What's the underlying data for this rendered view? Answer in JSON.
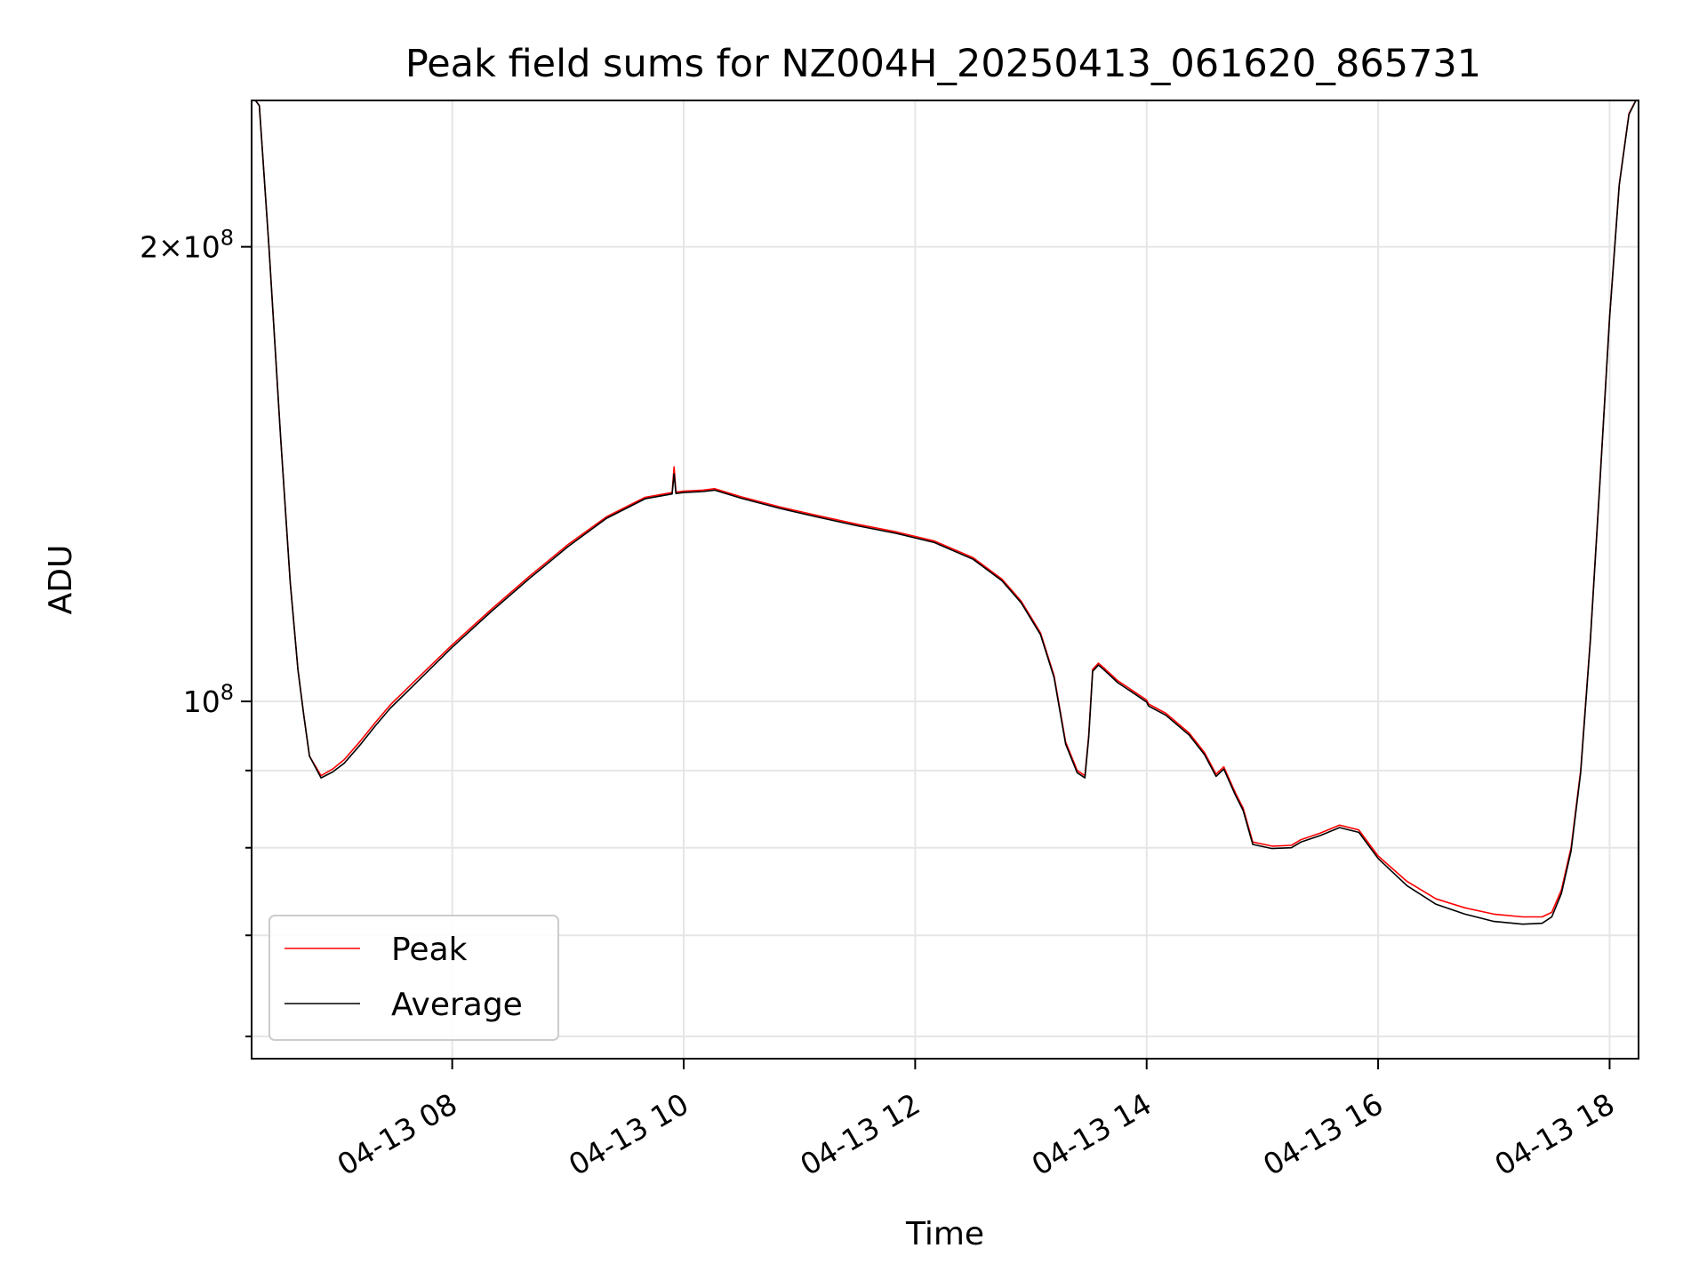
{
  "chart_data": {
    "type": "line",
    "title": "Peak field sums for NZ004H_20250413_061620_865731",
    "xlabel": "Time",
    "ylabel": "ADU",
    "yscale": "log",
    "ylim": [
      58000000,
      250000000
    ],
    "x_range": [
      "04-13 06:16",
      "04-13 18:15"
    ],
    "x_ticks": [
      "04-13 08",
      "04-13 10",
      "04-13 12",
      "04-13 14",
      "04-13 16",
      "04-13 18"
    ],
    "y_major_tick_labels": [
      "10^8",
      "2×10^8"
    ],
    "y_minor_tick_values": [
      60000000,
      70000000,
      80000000,
      90000000
    ],
    "grid": true,
    "legend_position": "lower-left",
    "series": [
      {
        "name": "Peak",
        "color": "#ff0000",
        "x": [
          "04-13 06:16",
          "04-13 06:20",
          "04-13 06:25",
          "04-13 06:31",
          "04-13 06:36",
          "04-13 06:40",
          "04-13 06:43",
          "04-13 06:46",
          "04-13 06:52",
          "04-13 06:58",
          "04-13 07:04",
          "04-13 07:12",
          "04-13 07:20",
          "04-13 07:28",
          "04-13 07:40",
          "04-13 08:00",
          "04-13 08:20",
          "04-13 08:40",
          "04-13 09:00",
          "04-13 09:20",
          "04-13 09:40",
          "04-13 09:54",
          "04-13 09:55",
          "04-13 09:56",
          "04-13 10:00",
          "04-13 10:10",
          "04-13 10:16",
          "04-13 10:30",
          "04-13 10:50",
          "04-13 11:10",
          "04-13 11:30",
          "04-13 11:50",
          "04-13 12:10",
          "04-13 12:30",
          "04-13 12:45",
          "04-13 12:55",
          "04-13 13:05",
          "04-13 13:12",
          "04-13 13:18",
          "04-13 13:24",
          "04-13 13:28",
          "04-13 13:30",
          "04-13 13:32",
          "04-13 13:35",
          "04-13 13:38",
          "04-13 13:45",
          "04-13 13:52",
          "04-13 14:00",
          "04-13 14:01",
          "04-13 14:10",
          "04-13 14:22",
          "04-13 14:30",
          "04-13 14:36",
          "04-13 14:40",
          "04-13 14:46",
          "04-13 14:50",
          "04-13 14:55",
          "04-13 15:05",
          "04-13 15:15",
          "04-13 15:20",
          "04-13 15:30",
          "04-13 15:40",
          "04-13 15:50",
          "04-13 16:00",
          "04-13 16:15",
          "04-13 16:30",
          "04-13 16:45",
          "04-13 17:00",
          "04-13 17:15",
          "04-13 17:25",
          "04-13 17:30",
          "04-13 17:35",
          "04-13 17:40",
          "04-13 17:45",
          "04-13 17:50",
          "04-13 17:55",
          "04-13 18:00",
          "04-13 18:05",
          "04-13 18:10",
          "04-13 18:15"
        ],
        "y": [
          252000000,
          248000000,
          200000000,
          150000000,
          120000000,
          105000000,
          98000000,
          92000000,
          89300000,
          90200000,
          91500000,
          94000000,
          96800000,
          99500000,
          103000000,
          109000000,
          115000000,
          121000000,
          127000000,
          132500000,
          136500000,
          137500000,
          143000000,
          137600000,
          137800000,
          138000000,
          138300000,
          136600000,
          134500000,
          132700000,
          131000000,
          129500000,
          127700000,
          124500000,
          120500000,
          116500000,
          111000000,
          104000000,
          94000000,
          90000000,
          89300000,
          95000000,
          105000000,
          106000000,
          105200000,
          103200000,
          101800000,
          100200000,
          99600000,
          98200000,
          95300000,
          92500000,
          89500000,
          90500000,
          87000000,
          85000000,
          80700000,
          80200000,
          80300000,
          81000000,
          81800000,
          82800000,
          82200000,
          79000000,
          76000000,
          74000000,
          73000000,
          72300000,
          72000000,
          72000000,
          72500000,
          75000000,
          80000000,
          90000000,
          110000000,
          140000000,
          180000000,
          220000000,
          245000000,
          252000000
        ]
      },
      {
        "name": "Average",
        "color": "#000000",
        "x": [
          "04-13 06:16",
          "04-13 06:20",
          "04-13 06:25",
          "04-13 06:31",
          "04-13 06:36",
          "04-13 06:40",
          "04-13 06:43",
          "04-13 06:46",
          "04-13 06:52",
          "04-13 06:58",
          "04-13 07:04",
          "04-13 07:12",
          "04-13 07:20",
          "04-13 07:28",
          "04-13 07:40",
          "04-13 08:00",
          "04-13 08:20",
          "04-13 08:40",
          "04-13 09:00",
          "04-13 09:20",
          "04-13 09:40",
          "04-13 09:54",
          "04-13 09:55",
          "04-13 09:56",
          "04-13 10:00",
          "04-13 10:10",
          "04-13 10:16",
          "04-13 10:30",
          "04-13 10:50",
          "04-13 11:10",
          "04-13 11:30",
          "04-13 11:50",
          "04-13 12:10",
          "04-13 12:30",
          "04-13 12:45",
          "04-13 12:55",
          "04-13 13:05",
          "04-13 13:12",
          "04-13 13:18",
          "04-13 13:24",
          "04-13 13:28",
          "04-13 13:30",
          "04-13 13:32",
          "04-13 13:35",
          "04-13 13:38",
          "04-13 13:45",
          "04-13 13:52",
          "04-13 14:00",
          "04-13 14:01",
          "04-13 14:10",
          "04-13 14:22",
          "04-13 14:30",
          "04-13 14:36",
          "04-13 14:40",
          "04-13 14:46",
          "04-13 14:50",
          "04-13 14:55",
          "04-13 15:05",
          "04-13 15:15",
          "04-13 15:20",
          "04-13 15:30",
          "04-13 15:40",
          "04-13 15:50",
          "04-13 16:00",
          "04-13 16:15",
          "04-13 16:30",
          "04-13 16:45",
          "04-13 17:00",
          "04-13 17:15",
          "04-13 17:25",
          "04-13 17:30",
          "04-13 17:35",
          "04-13 17:40",
          "04-13 17:45",
          "04-13 17:50",
          "04-13 17:55",
          "04-13 18:00",
          "04-13 18:05",
          "04-13 18:10",
          "04-13 18:15"
        ],
        "y": [
          252000000,
          248000000,
          200000000,
          150000000,
          120000000,
          105000000,
          98000000,
          92000000,
          89000000,
          89800000,
          91000000,
          93500000,
          96300000,
          99000000,
          102500000,
          108600000,
          114600000,
          120600000,
          126600000,
          132200000,
          136200000,
          137200000,
          141500000,
          137300000,
          137500000,
          137700000,
          138000000,
          136300000,
          134200000,
          132400000,
          130700000,
          129200000,
          127400000,
          124200000,
          120200000,
          116200000,
          110700000,
          103700000,
          93700000,
          89700000,
          89000000,
          94700000,
          104700000,
          105700000,
          104900000,
          102900000,
          101500000,
          99900000,
          99300000,
          97900000,
          95000000,
          92200000,
          89200000,
          90200000,
          86700000,
          84700000,
          80400000,
          79900000,
          80000000,
          80700000,
          81500000,
          82500000,
          81900000,
          78700000,
          75500000,
          73400000,
          72300000,
          71500000,
          71200000,
          71300000,
          72000000,
          74600000,
          79600000,
          89700000,
          109700000,
          139700000,
          179700000,
          219700000,
          244700000,
          252000000
        ]
      }
    ]
  }
}
